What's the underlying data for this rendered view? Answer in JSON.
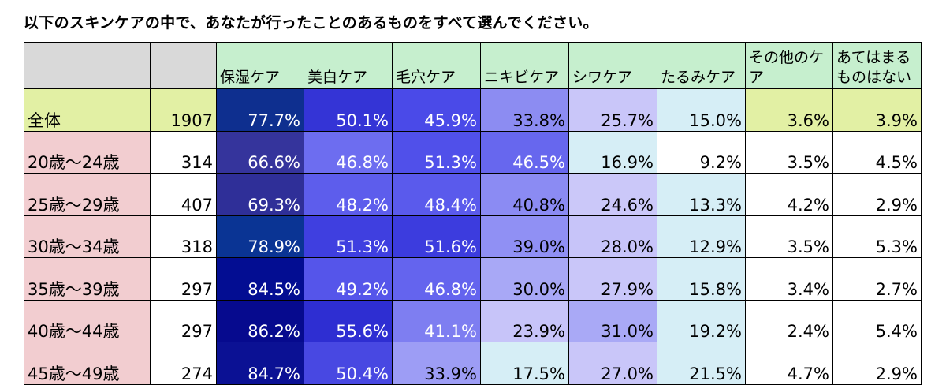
{
  "title": "以下のスキンケアの中で、あなたが行ったことのあるものをすべて選んでください。",
  "colors": {
    "header_blank": "#d9d9d9",
    "header_green": "#c6efce",
    "total_label": "#e2f0a4",
    "age_label": "#f2cdd0",
    "white": "#ffffff"
  },
  "chart_data": {
    "type": "table",
    "title": "以下のスキンケアの中で、あなたが行ったことのあるものをすべて選んでください。",
    "columns": [
      "保湿ケア",
      "美白ケア",
      "毛穴ケア",
      "ニキビケア",
      "シワケア",
      "たるみケア",
      "その他のケア",
      "あてはまるものはない"
    ],
    "rows": [
      {
        "label": "全体",
        "n": "1907",
        "values": [
          "77.7%",
          "50.1%",
          "45.9%",
          "33.8%",
          "25.7%",
          "15.0%",
          "3.6%",
          "3.9%"
        ]
      },
      {
        "label": "20歳～24歳",
        "n": "314",
        "values": [
          "66.6%",
          "46.8%",
          "51.3%",
          "46.5%",
          "16.9%",
          "9.2%",
          "3.5%",
          "4.5%"
        ]
      },
      {
        "label": "25歳～29歳",
        "n": "407",
        "values": [
          "69.3%",
          "48.2%",
          "48.4%",
          "40.8%",
          "24.6%",
          "13.3%",
          "4.2%",
          "2.9%"
        ]
      },
      {
        "label": "30歳～34歳",
        "n": "318",
        "values": [
          "78.9%",
          "51.3%",
          "51.6%",
          "39.0%",
          "28.0%",
          "12.9%",
          "3.5%",
          "5.3%"
        ]
      },
      {
        "label": "35歳～39歳",
        "n": "297",
        "values": [
          "84.5%",
          "49.2%",
          "46.8%",
          "30.0%",
          "27.9%",
          "15.8%",
          "3.4%",
          "2.7%"
        ]
      },
      {
        "label": "40歳～44歳",
        "n": "297",
        "values": [
          "86.2%",
          "55.6%",
          "41.1%",
          "23.9%",
          "31.0%",
          "19.2%",
          "2.4%",
          "5.4%"
        ]
      },
      {
        "label": "45歳～49歳",
        "n": "274",
        "values": [
          "84.7%",
          "50.4%",
          "33.9%",
          "17.5%",
          "27.0%",
          "21.5%",
          "4.7%",
          "2.9%"
        ]
      }
    ],
    "cell_colors": [
      [
        "#0e2f8f",
        "#3434d6",
        "#4a4ae8",
        "#8c8cf2",
        "#c9c6f9",
        "#d6eef6",
        "#e2f0a4",
        "#e2f0a4"
      ],
      [
        "#35349c",
        "#6d6df0",
        "#5050ea",
        "#6767ee",
        "#d6eef6",
        "#ffffff",
        "#ffffff",
        "#ffffff"
      ],
      [
        "#2f2f98",
        "#5d5dec",
        "#5a5aec",
        "#8b8bf3",
        "#cbc8f9",
        "#d6eef6",
        "#ffffff",
        "#ffffff"
      ],
      [
        "#0a3494",
        "#3f3fe0",
        "#3c3cde",
        "#9090f4",
        "#c7c4f9",
        "#d6eef6",
        "#ffffff",
        "#ffffff"
      ],
      [
        "#030d92",
        "#5555ea",
        "#6464ee",
        "#a8a8f6",
        "#c9c6f9",
        "#d6eef6",
        "#ffffff",
        "#ffffff"
      ],
      [
        "#060a8e",
        "#2e2ed2",
        "#7e7ef1",
        "#c7c4f9",
        "#a9a9f6",
        "#d6eef6",
        "#ffffff",
        "#ffffff"
      ],
      [
        "#0b1194",
        "#4848e2",
        "#9d9df5",
        "#d6eef6",
        "#c9c6f9",
        "#d6eef6",
        "#ffffff",
        "#ffffff"
      ]
    ]
  }
}
